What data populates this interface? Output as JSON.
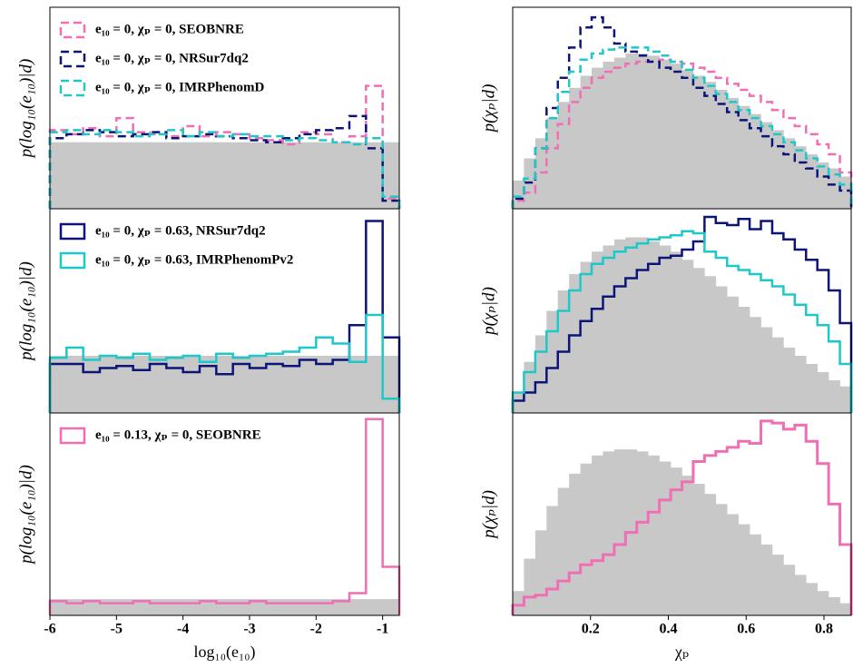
{
  "chart_data": [
    {
      "type": "histogram",
      "ylabel": "p(log₁₀(e₁₀)|d)",
      "xlim": [
        -6,
        -0.75
      ],
      "ylim": [
        0,
        10
      ],
      "linestyle": "dashed",
      "bins": [
        -6,
        -5.75,
        -5.5,
        -5.25,
        -5,
        -4.75,
        -4.5,
        -4.25,
        -4,
        -3.75,
        -3.5,
        -3.25,
        -3,
        -2.75,
        -2.5,
        -2.25,
        -2,
        -1.75,
        -1.5,
        -1.25,
        -1,
        -0.75
      ],
      "prior": {
        "color": "#c8c8c8",
        "values": [
          3.3,
          3.3,
          3.3,
          3.3,
          3.3,
          3.3,
          3.3,
          3.3,
          3.3,
          3.3,
          3.3,
          3.3,
          3.3,
          3.3,
          3.3,
          3.3,
          3.3,
          3.3,
          3.3,
          3.3,
          3.3
        ]
      },
      "series": [
        {
          "name": "e₁₀ = 0, χₚ = 0, SEOBNRE",
          "color": "#f06eb4",
          "values": [
            3.9,
            3.7,
            4.0,
            3.6,
            4.5,
            3.8,
            3.7,
            3.6,
            4.1,
            3.6,
            3.8,
            3.7,
            3.5,
            3.4,
            3.2,
            3.8,
            3.7,
            3.3,
            3.6,
            6.1,
            0.5
          ]
        },
        {
          "name": "e₁₀ = 0, χₚ = 0, NRSur7dq2",
          "color": "#0d1478",
          "values": [
            3.5,
            3.7,
            3.9,
            3.8,
            3.6,
            3.7,
            3.8,
            3.5,
            3.6,
            3.7,
            3.6,
            3.5,
            3.4,
            3.3,
            3.5,
            3.7,
            3.9,
            4.0,
            4.6,
            3.0,
            0.4
          ]
        },
        {
          "name": "e₁₀ = 0, χₚ = 0, IMRPhenomD",
          "color": "#1ec8c8",
          "values": [
            3.8,
            3.9,
            3.7,
            3.9,
            3.8,
            3.6,
            3.7,
            3.9,
            3.6,
            3.8,
            3.6,
            3.7,
            3.6,
            3.6,
            3.4,
            3.5,
            3.4,
            3.3,
            3.2,
            3.5,
            0.6
          ]
        }
      ]
    },
    {
      "type": "histogram",
      "ylabel": "p(log₁₀(e₁₀)|d)",
      "xlim": [
        -6,
        -0.75
      ],
      "ylim": [
        0,
        10
      ],
      "linestyle": "solid",
      "bins": [
        -6,
        -5.75,
        -5.5,
        -5.25,
        -5,
        -4.75,
        -4.5,
        -4.25,
        -4,
        -3.75,
        -3.5,
        -3.25,
        -3,
        -2.75,
        -2.5,
        -2.25,
        -2,
        -1.75,
        -1.5,
        -1.25,
        -1,
        -0.75
      ],
      "prior": {
        "color": "#c8c8c8",
        "values": [
          2.8,
          2.8,
          2.8,
          2.8,
          2.8,
          2.8,
          2.8,
          2.8,
          2.8,
          2.8,
          2.8,
          2.8,
          2.8,
          2.8,
          2.8,
          2.8,
          2.8,
          2.8,
          2.8,
          2.8,
          2.8
        ]
      },
      "series": [
        {
          "name": "e₁₀ = 0, χₚ = 0.63, NRSur7dq2",
          "color": "#0d1478",
          "values": [
            2.4,
            2.4,
            2.0,
            2.2,
            2.3,
            2.1,
            2.4,
            2.2,
            2.0,
            2.3,
            1.9,
            2.4,
            2.2,
            2.4,
            2.3,
            2.6,
            2.4,
            2.6,
            4.3,
            9.4,
            3.7
          ]
        },
        {
          "name": "e₁₀ = 0, χₚ = 0.63, IMRPhenomPv2",
          "color": "#1ec8c8",
          "values": [
            2.7,
            3.2,
            2.6,
            2.8,
            2.7,
            2.9,
            2.6,
            2.7,
            2.8,
            2.5,
            2.9,
            2.7,
            2.8,
            2.9,
            3.0,
            3.2,
            3.7,
            3.4,
            2.5,
            4.8,
            0.7
          ]
        }
      ]
    },
    {
      "type": "histogram",
      "ylabel": "p(log₁₀(e₁₀)|d)",
      "xlabel": "log₁₀(e₁₀)",
      "xlim": [
        -6,
        -0.75
      ],
      "ylim": [
        0,
        10
      ],
      "xticks": [
        -6,
        -5,
        -4,
        -3,
        -2,
        -1
      ],
      "linestyle": "solid",
      "bins": [
        -6,
        -5.75,
        -5.5,
        -5.25,
        -5,
        -4.75,
        -4.5,
        -4.25,
        -4,
        -3.75,
        -3.5,
        -3.25,
        -3,
        -2.75,
        -2.5,
        -2.25,
        -2,
        -1.75,
        -1.5,
        -1.25,
        -1,
        -0.75
      ],
      "prior": {
        "color": "#c8c8c8",
        "values": [
          0.8,
          0.8,
          0.8,
          0.8,
          0.8,
          0.8,
          0.8,
          0.8,
          0.8,
          0.8,
          0.8,
          0.8,
          0.8,
          0.8,
          0.8,
          0.8,
          0.8,
          0.8,
          0.8,
          0.8,
          0.8
        ]
      },
      "series": [
        {
          "name": "e₁₀ = 0.13, χₚ = 0, SEOBNRE",
          "color": "#f06eb4",
          "values": [
            0.7,
            0.6,
            0.7,
            0.6,
            0.6,
            0.7,
            0.6,
            0.6,
            0.6,
            0.7,
            0.6,
            0.6,
            0.7,
            0.6,
            0.6,
            0.6,
            0.6,
            0.7,
            1.1,
            9.7,
            2.4
          ]
        }
      ]
    },
    {
      "type": "histogram",
      "ylabel": "p(χₚ|d)",
      "xlim": [
        0,
        0.87
      ],
      "ylim": [
        0,
        10
      ],
      "linestyle": "dashed",
      "bins": [
        0,
        0.029,
        0.058,
        0.087,
        0.116,
        0.145,
        0.174,
        0.203,
        0.232,
        0.261,
        0.29,
        0.319,
        0.348,
        0.377,
        0.406,
        0.435,
        0.464,
        0.493,
        0.522,
        0.551,
        0.58,
        0.609,
        0.638,
        0.667,
        0.696,
        0.725,
        0.754,
        0.783,
        0.812,
        0.841,
        0.87
      ],
      "prior": {
        "color": "#c8c8c8",
        "values": [
          1.4,
          2.5,
          3.5,
          4.5,
          5.3,
          6.0,
          6.6,
          7.0,
          7.3,
          7.5,
          7.7,
          7.7,
          7.6,
          7.4,
          7.2,
          6.9,
          6.6,
          6.3,
          5.9,
          5.5,
          5.1,
          4.7,
          4.3,
          3.9,
          3.5,
          3.1,
          2.7,
          2.3,
          2.0,
          1.6
        ]
      },
      "series": [
        {
          "color": "#f06eb4",
          "values": [
            0.4,
            0.8,
            1.8,
            3.0,
            4.2,
            5.3,
            6.0,
            6.5,
            6.8,
            7.0,
            7.2,
            7.3,
            7.3,
            7.4,
            7.3,
            7.2,
            7.0,
            6.8,
            6.5,
            6.2,
            5.9,
            5.6,
            5.3,
            4.9,
            4.5,
            4.1,
            3.7,
            3.2,
            2.7,
            1.8
          ]
        },
        {
          "color": "#0d1478",
          "values": [
            0.5,
            1.3,
            3.0,
            5.0,
            6.5,
            8.0,
            9.0,
            9.5,
            9.0,
            8.2,
            7.8,
            7.6,
            7.3,
            7.0,
            6.8,
            6.5,
            6.0,
            5.6,
            5.2,
            4.8,
            4.4,
            4.0,
            3.6,
            3.1,
            2.7,
            2.3,
            2.0,
            1.6,
            1.2,
            0.9
          ]
        },
        {
          "color": "#1ec8c8",
          "values": [
            0.6,
            1.5,
            3.0,
            4.5,
            5.8,
            6.8,
            7.4,
            7.7,
            7.9,
            8.0,
            8.0,
            8.0,
            7.8,
            7.6,
            7.3,
            6.9,
            6.5,
            6.1,
            5.7,
            5.3,
            4.9,
            4.5,
            4.1,
            3.7,
            3.3,
            2.9,
            2.5,
            2.1,
            1.7,
            1.2
          ]
        }
      ]
    },
    {
      "type": "histogram",
      "ylabel": "p(χₚ|d)",
      "xlim": [
        0,
        0.87
      ],
      "ylim": [
        0,
        10
      ],
      "linestyle": "solid",
      "bins": [
        0,
        0.029,
        0.058,
        0.087,
        0.116,
        0.145,
        0.174,
        0.203,
        0.232,
        0.261,
        0.29,
        0.319,
        0.348,
        0.377,
        0.406,
        0.435,
        0.464,
        0.493,
        0.522,
        0.551,
        0.58,
        0.609,
        0.638,
        0.667,
        0.696,
        0.725,
        0.754,
        0.783,
        0.812,
        0.841,
        0.87
      ],
      "prior": {
        "color": "#c8c8c8",
        "values": [
          1.0,
          2.5,
          3.8,
          5.0,
          6.0,
          6.8,
          7.4,
          7.9,
          8.2,
          8.5,
          8.6,
          8.6,
          8.4,
          8.2,
          7.9,
          7.5,
          7.1,
          6.7,
          6.2,
          5.7,
          5.2,
          4.7,
          4.2,
          3.7,
          3.2,
          2.8,
          2.4,
          2.0,
          1.6,
          1.3
        ]
      },
      "series": [
        {
          "color": "#0d1478",
          "values": [
            0.6,
            1.0,
            1.5,
            2.2,
            3.0,
            3.8,
            4.5,
            5.1,
            5.7,
            6.2,
            6.6,
            7.0,
            7.3,
            7.6,
            7.7,
            8.0,
            8.4,
            9.6,
            9.3,
            9.2,
            9.5,
            9.0,
            9.4,
            8.8,
            8.5,
            8.0,
            7.5,
            7.0,
            6.0,
            4.4
          ]
        },
        {
          "color": "#1ec8c8",
          "values": [
            1.0,
            2.0,
            3.0,
            4.0,
            5.0,
            6.0,
            6.8,
            7.3,
            7.6,
            7.9,
            8.1,
            8.3,
            8.5,
            8.6,
            8.7,
            8.9,
            8.8,
            7.9,
            7.6,
            7.2,
            7.0,
            6.8,
            6.5,
            6.2,
            5.8,
            5.3,
            4.8,
            4.3,
            3.5,
            2.4
          ]
        }
      ]
    },
    {
      "type": "histogram",
      "ylabel": "p(χₚ|d)",
      "xlabel": "χₚ",
      "xlim": [
        0,
        0.87
      ],
      "ylim": [
        0,
        10
      ],
      "xticks": [
        0.2,
        0.4,
        0.6,
        0.8
      ],
      "linestyle": "solid",
      "linewidth": 3,
      "bins": [
        0,
        0.029,
        0.058,
        0.087,
        0.116,
        0.145,
        0.174,
        0.203,
        0.232,
        0.261,
        0.29,
        0.319,
        0.348,
        0.377,
        0.406,
        0.435,
        0.464,
        0.493,
        0.522,
        0.551,
        0.58,
        0.609,
        0.638,
        0.667,
        0.696,
        0.725,
        0.754,
        0.783,
        0.812,
        0.841,
        0.87
      ],
      "prior": {
        "color": "#c8c8c8",
        "values": [
          1.2,
          2.8,
          4.2,
          5.4,
          6.3,
          7.0,
          7.5,
          7.9,
          8.1,
          8.2,
          8.2,
          8.1,
          7.9,
          7.6,
          7.3,
          6.9,
          6.5,
          6.0,
          5.5,
          5.0,
          4.5,
          4.0,
          3.5,
          3.0,
          2.5,
          2.0,
          1.6,
          1.2,
          0.9,
          0.6
        ]
      },
      "series": [
        {
          "color": "#f06eb4",
          "values": [
            0.5,
            0.9,
            1.0,
            1.3,
            1.7,
            2.1,
            2.5,
            2.7,
            3.0,
            3.5,
            4.1,
            4.6,
            5.1,
            5.7,
            6.2,
            6.6,
            7.6,
            7.9,
            8.1,
            8.3,
            8.6,
            8.5,
            9.6,
            9.5,
            9.2,
            9.4,
            8.6,
            7.5,
            5.5,
            3.5
          ]
        }
      ]
    }
  ]
}
